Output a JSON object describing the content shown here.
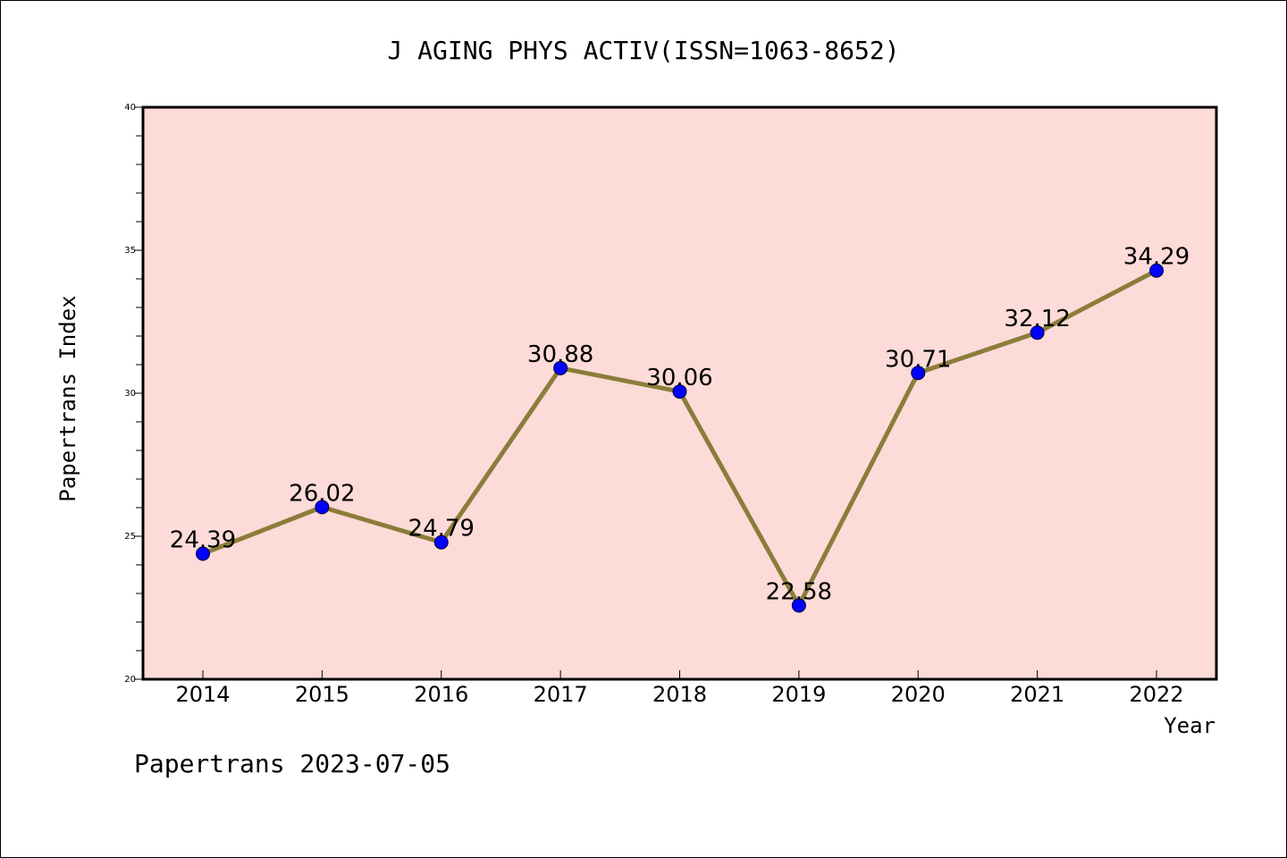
{
  "chart_data": {
    "type": "line",
    "title": "J AGING PHYS ACTIV(ISSN=1063-8652)",
    "xlabel": "Year",
    "ylabel": "Papertrans Index",
    "categories": [
      "2014",
      "2015",
      "2016",
      "2017",
      "2018",
      "2019",
      "2020",
      "2021",
      "2022"
    ],
    "series": [
      {
        "values": [
          24.39,
          26.02,
          24.79,
          30.88,
          30.06,
          22.58,
          30.71,
          32.12,
          34.29
        ],
        "labels": [
          "24.39",
          "26.02",
          "24.79",
          "30.88",
          "30.06",
          "22.58",
          "30.71",
          "32.12",
          "34.29"
        ],
        "line_color": "#8b7d3a",
        "marker_color": "#0000ff"
      }
    ],
    "ylim": [
      20,
      40
    ],
    "yticks": [
      "20",
      "25",
      "30",
      "35",
      "40"
    ],
    "plot_background": "#fddbd8",
    "grid": false,
    "footer": "Papertrans 2023-07-05"
  }
}
